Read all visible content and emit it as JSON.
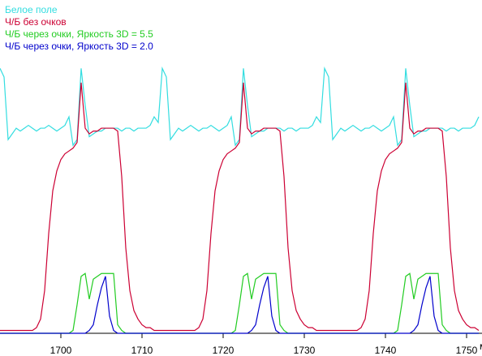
{
  "chart_data": {
    "type": "line",
    "x_label": "мс",
    "x": [
      1692.5,
      1693,
      1693.5,
      1694,
      1694.5,
      1695,
      1695.5,
      1696,
      1696.5,
      1697,
      1697.5,
      1698,
      1698.5,
      1699,
      1699.5,
      1700,
      1700.5,
      1701,
      1701.5,
      1702,
      1702.5,
      1703,
      1703.5,
      1704,
      1704.5,
      1705,
      1705.5,
      1706,
      1706.5,
      1707,
      1707.5,
      1708,
      1708.5,
      1709,
      1709.5,
      1710,
      1710.5,
      1711,
      1711.5,
      1712,
      1712.5,
      1713,
      1713.5,
      1714,
      1714.5,
      1715,
      1715.5,
      1716,
      1716.5,
      1717,
      1717.5,
      1718,
      1718.5,
      1719,
      1719.5,
      1720,
      1720.5,
      1721,
      1721.5,
      1722,
      1722.5,
      1723,
      1723.5,
      1724,
      1724.5,
      1725,
      1725.5,
      1726,
      1726.5,
      1727,
      1727.5,
      1728,
      1728.5,
      1729,
      1729.5,
      1730,
      1730.5,
      1731,
      1731.5,
      1732,
      1732.5,
      1733,
      1733.5,
      1734,
      1734.5,
      1735,
      1735.5,
      1736,
      1736.5,
      1737,
      1737.5,
      1738,
      1738.5,
      1739,
      1739.5,
      1740,
      1740.5,
      1741,
      1741.5,
      1742,
      1742.5,
      1743,
      1743.5,
      1744,
      1744.5,
      1745,
      1745.5,
      1746,
      1746.5,
      1747,
      1747.5,
      1748,
      1748.5,
      1749,
      1749.5,
      1750,
      1750.5,
      1751,
      1751.5
    ],
    "series": [
      {
        "name": "Белое поле",
        "color": "#33dde0",
        "values": [
          93,
          90,
          68,
          70,
          72,
          71,
          72,
          73,
          72,
          71,
          72,
          72,
          73,
          72,
          71,
          72,
          73,
          76,
          66,
          68,
          93,
          80,
          69,
          70,
          71,
          71,
          72,
          72,
          72,
          72,
          71,
          72,
          72,
          71,
          72,
          72,
          72,
          73,
          76,
          74,
          93,
          90,
          68,
          70,
          72,
          71,
          72,
          73,
          72,
          71,
          72,
          72,
          73,
          72,
          71,
          72,
          73,
          76,
          66,
          68,
          93,
          80,
          69,
          70,
          71,
          71,
          72,
          72,
          72,
          72,
          71,
          72,
          72,
          71,
          72,
          72,
          72,
          73,
          76,
          74,
          93,
          90,
          68,
          70,
          72,
          71,
          72,
          73,
          72,
          71,
          72,
          72,
          73,
          72,
          71,
          72,
          73,
          76,
          66,
          68,
          93,
          80,
          69,
          70,
          71,
          71,
          72,
          72,
          72,
          72,
          71,
          72,
          72,
          71,
          72,
          72,
          72,
          73,
          76
        ]
      },
      {
        "name": "Ч/Б без очков",
        "color": "#cc0033",
        "values": [
          1,
          1,
          1,
          1,
          1,
          1,
          1,
          1,
          1,
          2,
          5,
          15,
          35,
          50,
          57,
          61,
          63,
          64,
          65,
          67,
          88,
          72,
          70,
          71,
          71,
          72,
          72,
          72,
          72,
          71,
          55,
          30,
          15,
          8,
          5,
          3,
          2,
          2,
          1,
          1,
          1,
          1,
          1,
          1,
          1,
          1,
          1,
          1,
          1,
          2,
          5,
          15,
          35,
          50,
          57,
          61,
          63,
          64,
          65,
          67,
          88,
          72,
          70,
          71,
          71,
          72,
          72,
          72,
          72,
          71,
          55,
          30,
          15,
          8,
          5,
          3,
          2,
          2,
          1,
          1,
          1,
          1,
          1,
          1,
          1,
          1,
          1,
          1,
          1,
          2,
          5,
          15,
          35,
          50,
          57,
          61,
          63,
          64,
          65,
          67,
          88,
          72,
          70,
          71,
          71,
          72,
          72,
          72,
          72,
          71,
          55,
          30,
          15,
          8,
          5,
          3,
          2,
          2,
          1
        ]
      },
      {
        "name": "Ч/Б через очки, Яркость 3D = 5.5",
        "color": "#22cc22",
        "values": [
          0,
          0,
          0,
          0,
          0,
          0,
          0,
          0,
          0,
          0,
          0,
          0,
          0,
          0,
          0,
          0,
          0,
          0,
          1,
          10,
          20,
          21,
          12,
          19,
          20,
          21,
          21,
          21,
          21,
          3,
          1,
          0,
          0,
          0,
          0,
          0,
          0,
          0,
          0,
          0,
          0,
          0,
          0,
          0,
          0,
          0,
          0,
          0,
          0,
          0,
          0,
          0,
          0,
          0,
          0,
          0,
          0,
          0,
          1,
          10,
          20,
          21,
          12,
          19,
          20,
          21,
          21,
          21,
          21,
          3,
          1,
          0,
          0,
          0,
          0,
          0,
          0,
          0,
          0,
          0,
          0,
          0,
          0,
          0,
          0,
          0,
          0,
          0,
          0,
          0,
          0,
          0,
          0,
          0,
          0,
          0,
          0,
          0,
          1,
          10,
          20,
          21,
          12,
          19,
          20,
          21,
          21,
          21,
          21,
          3,
          1,
          0,
          0,
          0,
          0,
          0,
          0,
          0,
          0
        ]
      },
      {
        "name": "Ч/Б через очки, Яркость 3D = 2.0",
        "color": "#0000cc",
        "values": [
          0,
          0,
          0,
          0,
          0,
          0,
          0,
          0,
          0,
          0,
          0,
          0,
          0,
          0,
          0,
          0,
          0,
          0,
          0,
          0,
          0,
          0,
          1,
          3,
          10,
          16,
          20,
          6,
          1,
          0,
          0,
          0,
          0,
          0,
          0,
          0,
          0,
          0,
          0,
          0,
          0,
          0,
          0,
          0,
          0,
          0,
          0,
          0,
          0,
          0,
          0,
          0,
          0,
          0,
          0,
          0,
          0,
          0,
          0,
          0,
          0,
          0,
          1,
          3,
          10,
          16,
          20,
          6,
          1,
          0,
          0,
          0,
          0,
          0,
          0,
          0,
          0,
          0,
          0,
          0,
          0,
          0,
          0,
          0,
          0,
          0,
          0,
          0,
          0,
          0,
          0,
          0,
          0,
          0,
          0,
          0,
          0,
          0,
          0,
          0,
          0,
          0,
          1,
          3,
          10,
          16,
          20,
          6,
          1,
          0,
          0,
          0,
          0,
          0,
          0,
          0,
          0,
          0,
          0
        ]
      }
    ],
    "xlim": [
      1692.5,
      1751.9
    ],
    "xticks": [
      1700,
      1710,
      1720,
      1730,
      1740,
      1750
    ],
    "ylim": [
      0,
      117
    ],
    "legend": "upper left"
  }
}
